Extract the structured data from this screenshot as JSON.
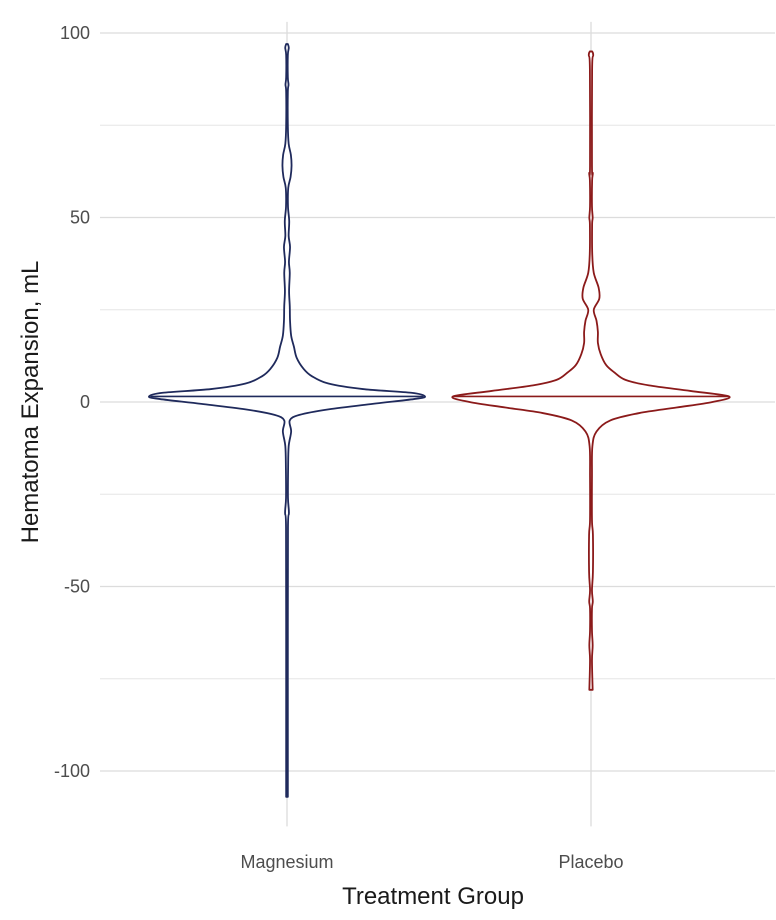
{
  "chart_data": {
    "type": "violin",
    "title": "",
    "xlabel": "Treatment Group",
    "ylabel": "Hematoma Expansion, mL",
    "categories": [
      "Magnesium",
      "Placebo"
    ],
    "ylim": [
      -115,
      103
    ],
    "yticks": [
      100,
      50,
      0,
      -50,
      -100
    ],
    "ytick_labels": [
      "100",
      "50",
      "0",
      "-50",
      "-100"
    ],
    "grid": true,
    "legend": "none",
    "series": [
      {
        "category": "Magnesium",
        "color": "#1f2a5c",
        "range": [
          -107,
          97
        ],
        "peak_y": 1.5,
        "density_profile": [
          [
            -107,
            0.006
          ],
          [
            -98,
            0.006
          ],
          [
            -60,
            0.006
          ],
          [
            -34,
            0.007
          ],
          [
            -30,
            0.014
          ],
          [
            -26,
            0.007
          ],
          [
            -18,
            0.008
          ],
          [
            -12,
            0.012
          ],
          [
            -8,
            0.03
          ],
          [
            -5,
            0.02
          ],
          [
            -3.5,
            0.09
          ],
          [
            -2,
            0.3
          ],
          [
            -0.5,
            0.62
          ],
          [
            0.8,
            0.92
          ],
          [
            1.5,
            1.0
          ],
          [
            2.5,
            0.9
          ],
          [
            3.5,
            0.55
          ],
          [
            5,
            0.3
          ],
          [
            7,
            0.18
          ],
          [
            9,
            0.12
          ],
          [
            12,
            0.07
          ],
          [
            15,
            0.05
          ],
          [
            18,
            0.03
          ],
          [
            22,
            0.022
          ],
          [
            26,
            0.02
          ],
          [
            30,
            0.015
          ],
          [
            35,
            0.02
          ],
          [
            38,
            0.014
          ],
          [
            42,
            0.022
          ],
          [
            45,
            0.012
          ],
          [
            49,
            0.016
          ],
          [
            53,
            0.007
          ],
          [
            58,
            0.009
          ],
          [
            61,
            0.026
          ],
          [
            64,
            0.033
          ],
          [
            67,
            0.028
          ],
          [
            70,
            0.012
          ],
          [
            75,
            0.006
          ],
          [
            84,
            0.006
          ],
          [
            86,
            0.011
          ],
          [
            88,
            0.006
          ],
          [
            94,
            0.006
          ],
          [
            96,
            0.013
          ],
          [
            97,
            0.006
          ]
        ]
      },
      {
        "category": "Placebo",
        "color": "#8b1a1a",
        "range": [
          -78,
          95
        ],
        "peak_y": 1.5,
        "density_profile": [
          [
            -78,
            0.012
          ],
          [
            -70,
            0.007
          ],
          [
            -66,
            0.012
          ],
          [
            -62,
            0.007
          ],
          [
            -56,
            0.007
          ],
          [
            -54,
            0.013
          ],
          [
            -51,
            0.007
          ],
          [
            -46,
            0.014
          ],
          [
            -36,
            0.014
          ],
          [
            -32,
            0.007
          ],
          [
            -20,
            0.007
          ],
          [
            -12,
            0.01
          ],
          [
            -8,
            0.04
          ],
          [
            -5,
            0.14
          ],
          [
            -3,
            0.35
          ],
          [
            -1.5,
            0.62
          ],
          [
            0,
            0.88
          ],
          [
            1.5,
            1.0
          ],
          [
            3,
            0.72
          ],
          [
            4.5,
            0.42
          ],
          [
            6,
            0.25
          ],
          [
            8,
            0.17
          ],
          [
            10,
            0.11
          ],
          [
            13,
            0.07
          ],
          [
            16,
            0.05
          ],
          [
            19,
            0.05
          ],
          [
            22,
            0.04
          ],
          [
            25,
            0.02
          ],
          [
            28,
            0.06
          ],
          [
            31,
            0.055
          ],
          [
            35,
            0.02
          ],
          [
            40,
            0.009
          ],
          [
            48,
            0.008
          ],
          [
            50,
            0.012
          ],
          [
            53,
            0.007
          ],
          [
            60,
            0.008
          ],
          [
            62,
            0.013
          ],
          [
            64,
            0.007
          ],
          [
            90,
            0.008
          ],
          [
            94,
            0.016
          ],
          [
            95,
            0.008
          ]
        ]
      }
    ]
  }
}
